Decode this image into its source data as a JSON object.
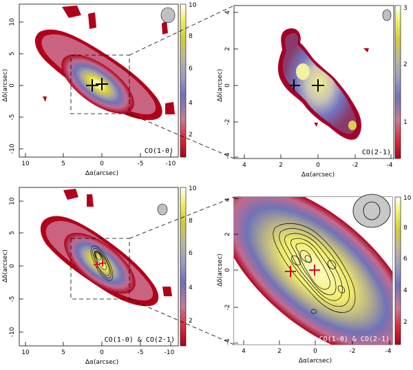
{
  "figure": {
    "panels": [
      {
        "id": "tl",
        "label": "CO(1-0)",
        "xlabel": "Δα(arcsec)",
        "ylabel": "Δδ(arcsec)",
        "xticks": [
          "10",
          "5",
          "0",
          "-5",
          "-10"
        ],
        "yticks": [
          "10",
          "5",
          "0",
          "-5",
          "-10"
        ],
        "cbar_ticks": [
          "10",
          "8",
          "6",
          "4",
          "2"
        ]
      },
      {
        "id": "tr",
        "label": "CO(2-1)",
        "xlabel": "Δα(arcsec)",
        "ylabel": "Δδ(arcsec)",
        "xticks": [
          "4",
          "2",
          "0",
          "-2",
          "-4"
        ],
        "yticks": [
          "4",
          "2",
          "0",
          "-2",
          "-4"
        ],
        "cbar_ticks": [
          "3",
          "2",
          "1"
        ]
      },
      {
        "id": "bl",
        "label": "CO(1-0) & CO(2-1)",
        "xlabel": "Δα(arcsec)",
        "ylabel": "Δδ(arcsec)",
        "xticks": [
          "10",
          "5",
          "0",
          "-5",
          "-10"
        ],
        "yticks": [
          "10",
          "5",
          "0",
          "-5",
          "-10"
        ],
        "cbar_ticks": [
          "10",
          "8",
          "6",
          "4",
          "2"
        ]
      },
      {
        "id": "br",
        "label": "CO(1-0) & CO(2-1)",
        "xlabel": "Δα(arcsec)",
        "ylabel": "Δδ(arcsec)",
        "xticks": [
          "4",
          "2",
          "0",
          "-2",
          "-4"
        ],
        "yticks": [
          "4",
          "2",
          "0",
          "-2",
          "-4"
        ],
        "cbar_ticks": [
          "10",
          "8",
          "6",
          "4",
          "2"
        ]
      }
    ],
    "colors": {
      "background": "#ffffff",
      "colormap_low": "#b0001a",
      "colormap_mid": "#6f73b8",
      "colormap_high": "#ffffff",
      "marker_black": "#000000",
      "marker_red": "#e0001b"
    }
  }
}
